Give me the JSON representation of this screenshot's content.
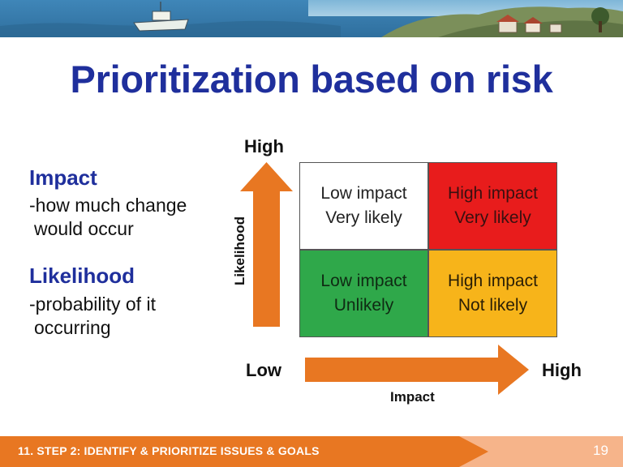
{
  "title": "Prioritization based on risk",
  "terms": [
    {
      "heading": "Impact",
      "lines": [
        "-how much change",
        "would occur"
      ]
    },
    {
      "heading": "Likelihood",
      "lines": [
        "-probability of it",
        "occurring"
      ]
    }
  ],
  "matrix": {
    "cells": {
      "top_left": [
        "Low impact",
        "Very likely"
      ],
      "top_right": [
        "High impact",
        "Very likely"
      ],
      "bottom_left": [
        "Low impact",
        "Unlikely"
      ],
      "bottom_right": [
        "High impact",
        "Not likely"
      ]
    },
    "colors": {
      "top_left": "#ffffff",
      "top_right": "#e81c1c",
      "bottom_left": "#2fa84a",
      "bottom_right": "#f7b41a",
      "arrow": "#e87722"
    }
  },
  "axes": {
    "y_high": "High",
    "y_title": "Likelihood",
    "x_low": "Low",
    "x_high": "High",
    "x_title": "Impact"
  },
  "footer": {
    "text": "11. STEP 2: IDENTIFY & PRIORITIZE ISSUES & GOALS",
    "page": "19"
  }
}
